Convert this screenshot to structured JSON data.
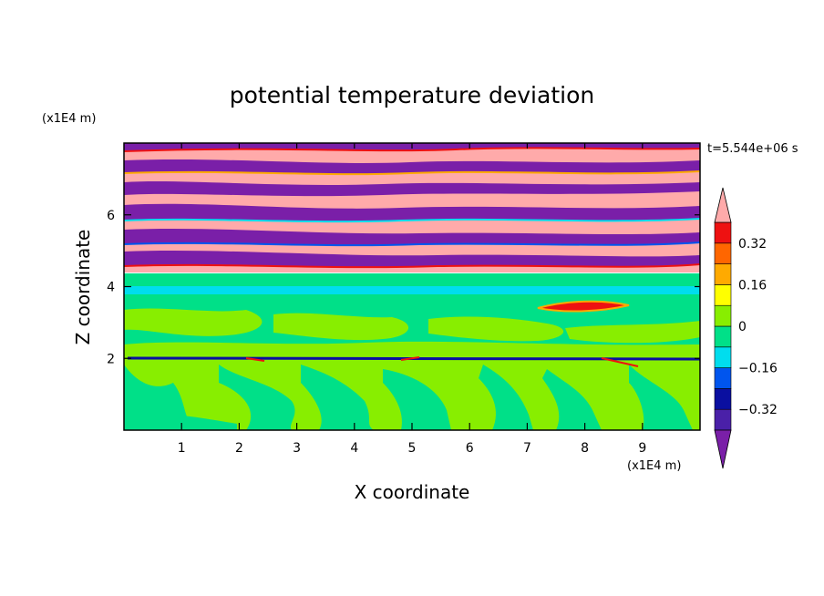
{
  "chart_data": {
    "type": "heatmap",
    "title": "potential temperature deviation",
    "time_label": "t=5.544e+06 s",
    "xlabel": "X coordinate",
    "ylabel": "Z coordinate",
    "x_unit": "(x1E4 m)",
    "y_unit": "(x1E4 m)",
    "xlim": [
      0,
      10
    ],
    "ylim": [
      0,
      8
    ],
    "x_ticks": [
      1,
      2,
      3,
      4,
      5,
      6,
      7,
      8,
      9
    ],
    "x_tick_labels": [
      "1",
      "2",
      "3",
      "4",
      "5",
      "6",
      "7",
      "8",
      "9"
    ],
    "y_ticks": [
      2,
      4,
      6
    ],
    "y_tick_labels": [
      "2",
      "4",
      "6"
    ],
    "colorbar": {
      "levels": [
        -0.4,
        -0.32,
        -0.24,
        -0.16,
        -0.08,
        0,
        0.08,
        0.16,
        0.24,
        0.32,
        0.4
      ],
      "colors": [
        "#7a1fa8",
        "#4a20a8",
        "#0a0fa0",
        "#0055ee",
        "#00ddee",
        "#00e088",
        "#88ee00",
        "#ffff00",
        "#ffaa00",
        "#ff6600",
        "#ee1111",
        "#ffaaaa"
      ],
      "tick_values": [
        0.32,
        0.16,
        0,
        -0.16,
        -0.32
      ],
      "tick_labels": [
        "0.32",
        "0.16",
        "0",
        "−0.16",
        "−0.32"
      ],
      "extend": "both"
    },
    "regions": [
      {
        "z_range": [
          0,
          2
        ],
        "description_values": "mix of green (0..0.08) and cyan-green (-0.08..0)"
      },
      {
        "z_range": [
          2,
          4
        ],
        "description_values": "mostly cyan-green (-0.08..0) with lighter green patches"
      },
      {
        "z_range": [
          4,
          8
        ],
        "description_values": "alternating pink (>0.4) and purple (<-0.4) bands"
      }
    ]
  }
}
